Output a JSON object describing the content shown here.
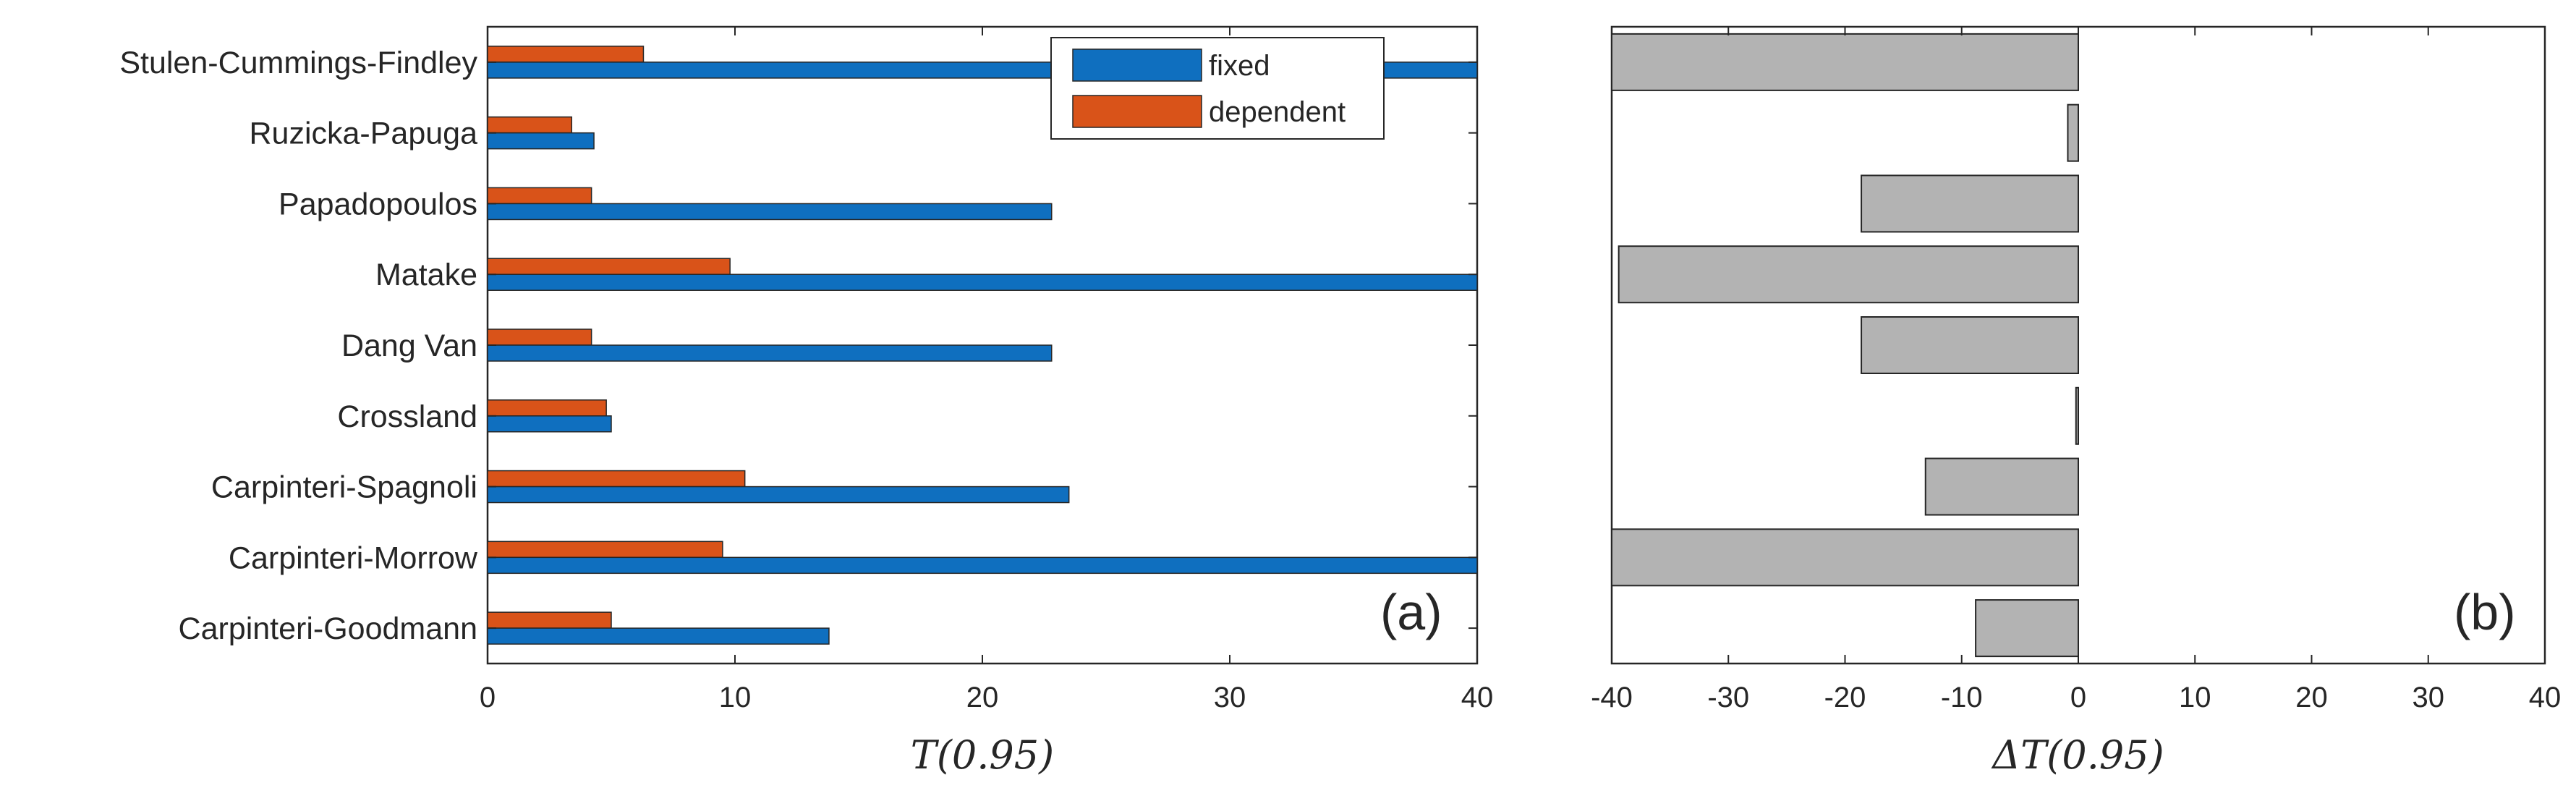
{
  "colors": {
    "fixed": "#0f6fbf",
    "dependent": "#d95319",
    "delta": "#b3b3b3",
    "axis": "#262626"
  },
  "chart_data": [
    {
      "type": "bar",
      "orientation": "horizontal",
      "panel_label": "(a)",
      "xlabel": "T(0.95)",
      "xlim": [
        0,
        40
      ],
      "xticks": [
        0,
        10,
        20,
        30,
        40
      ],
      "categories": [
        "Stulen-Cummings-Findley",
        "Ruzicka-Papuga",
        "Papadopoulos",
        "Matake",
        "Dang Van",
        "Crossland",
        "Carpinteri-Spagnoli",
        "Carpinteri-Morrow",
        "Carpinteri-Goodmann"
      ],
      "series": [
        {
          "name": "fixed",
          "values": [
            40,
            4.3,
            22.8,
            40,
            22.8,
            5.0,
            23.5,
            40,
            13.8
          ]
        },
        {
          "name": "dependent",
          "values": [
            6.3,
            3.4,
            4.2,
            9.8,
            4.2,
            4.8,
            10.4,
            9.5,
            5.0
          ]
        }
      ],
      "legend": {
        "position": "top-right",
        "entries": [
          "fixed",
          "dependent"
        ]
      }
    },
    {
      "type": "bar",
      "orientation": "horizontal",
      "panel_label": "(b)",
      "xlabel": "ΔT(0.95)",
      "xlim": [
        -40,
        40
      ],
      "xticks": [
        -40,
        -30,
        -20,
        -10,
        0,
        10,
        20,
        30,
        40
      ],
      "categories": [
        "Stulen-Cummings-Findley",
        "Ruzicka-Papuga",
        "Papadopoulos",
        "Matake",
        "Dang Van",
        "Crossland",
        "Carpinteri-Spagnoli",
        "Carpinteri-Morrow",
        "Carpinteri-Goodmann"
      ],
      "values": [
        -40,
        -0.9,
        -18.6,
        -39.4,
        -18.6,
        -0.2,
        -13.1,
        -40,
        -8.8
      ]
    }
  ]
}
